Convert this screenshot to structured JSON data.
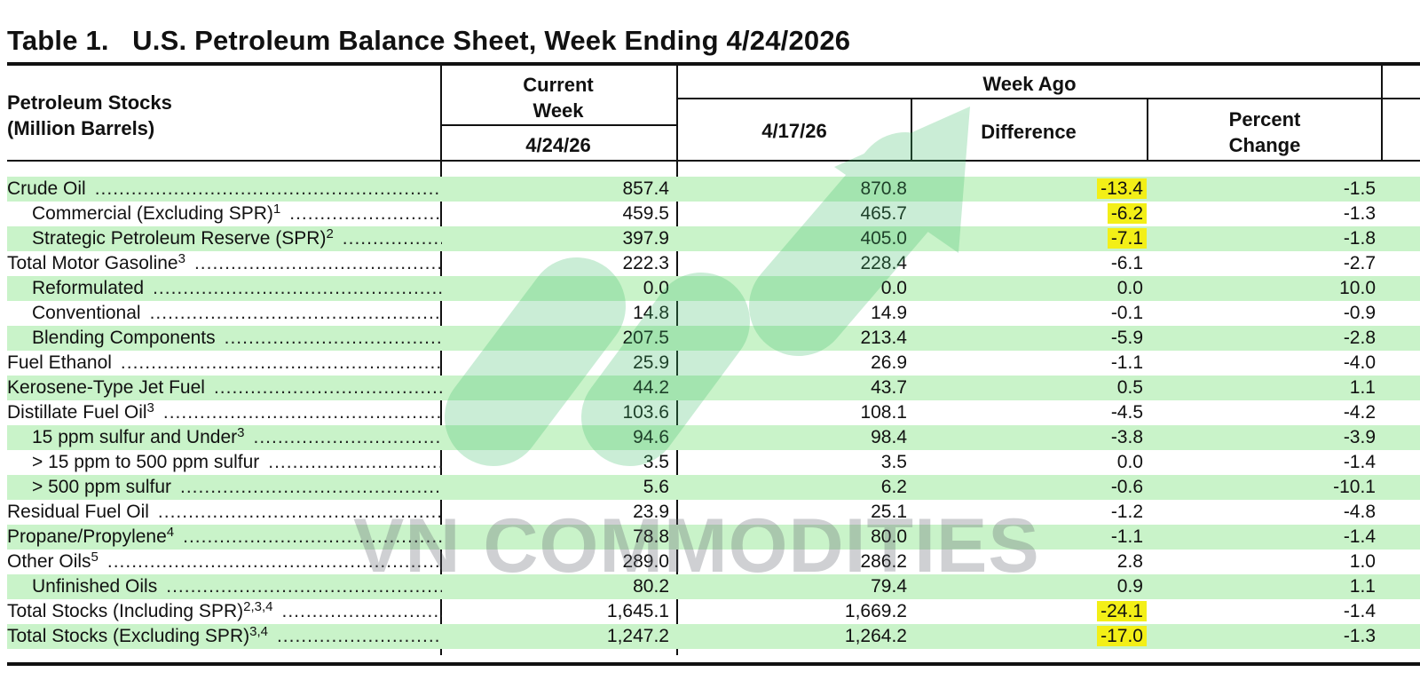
{
  "title": "Table 1.   U.S. Petroleum Balance Sheet, Week Ending 4/24/2026",
  "headers": {
    "stub_line1": "Petroleum Stocks",
    "stub_line2": "(Million Barrels)",
    "current_line1": "Current",
    "current_line2": "Week",
    "current_date": "4/24/26",
    "week_ago": "Week Ago",
    "week_ago_date": "4/17/26",
    "difference": "Difference",
    "percent_line1": "Percent",
    "percent_line2": "Change"
  },
  "rows": [
    {
      "label": "Crude Oil",
      "sup": "",
      "indent": false,
      "current": "857.4",
      "week_ago": "870.8",
      "difference": "-13.4",
      "percent": "-1.5",
      "highlight": true
    },
    {
      "label": "Commercial (Excluding SPR)",
      "sup": "1",
      "indent": true,
      "current": "459.5",
      "week_ago": "465.7",
      "difference": "-6.2",
      "percent": "-1.3",
      "highlight": true
    },
    {
      "label": "Strategic Petroleum Reserve (SPR)",
      "sup": "2",
      "indent": true,
      "current": "397.9",
      "week_ago": "405.0",
      "difference": "-7.1",
      "percent": "-1.8",
      "highlight": true
    },
    {
      "label": "Total Motor Gasoline",
      "sup": "3",
      "indent": false,
      "current": "222.3",
      "week_ago": "228.4",
      "difference": "-6.1",
      "percent": "-2.7",
      "highlight": false
    },
    {
      "label": "Reformulated",
      "sup": "",
      "indent": true,
      "current": "0.0",
      "week_ago": "0.0",
      "difference": "0.0",
      "percent": "10.0",
      "highlight": false
    },
    {
      "label": "Conventional",
      "sup": "",
      "indent": true,
      "current": "14.8",
      "week_ago": "14.9",
      "difference": "-0.1",
      "percent": "-0.9",
      "highlight": false
    },
    {
      "label": "Blending Components",
      "sup": "",
      "indent": true,
      "current": "207.5",
      "week_ago": "213.4",
      "difference": "-5.9",
      "percent": "-2.8",
      "highlight": false
    },
    {
      "label": "Fuel Ethanol",
      "sup": "",
      "indent": false,
      "current": "25.9",
      "week_ago": "26.9",
      "difference": "-1.1",
      "percent": "-4.0",
      "highlight": false
    },
    {
      "label": "Kerosene-Type Jet Fuel",
      "sup": "",
      "indent": false,
      "current": "44.2",
      "week_ago": "43.7",
      "difference": "0.5",
      "percent": "1.1",
      "highlight": false
    },
    {
      "label": "Distillate Fuel Oil",
      "sup": "3",
      "indent": false,
      "current": "103.6",
      "week_ago": "108.1",
      "difference": "-4.5",
      "percent": "-4.2",
      "highlight": false
    },
    {
      "label": "15 ppm sulfur and Under",
      "sup": "3",
      "indent": true,
      "current": "94.6",
      "week_ago": "98.4",
      "difference": "-3.8",
      "percent": "-3.9",
      "highlight": false
    },
    {
      "label": "> 15 ppm to 500 ppm sulfur",
      "sup": "",
      "indent": true,
      "current": "3.5",
      "week_ago": "3.5",
      "difference": "0.0",
      "percent": "-1.4",
      "highlight": false
    },
    {
      "label": "> 500 ppm sulfur",
      "sup": "",
      "indent": true,
      "current": "5.6",
      "week_ago": "6.2",
      "difference": "-0.6",
      "percent": "-10.1",
      "highlight": false
    },
    {
      "label": "Residual Fuel Oil",
      "sup": "",
      "indent": false,
      "current": "23.9",
      "week_ago": "25.1",
      "difference": "-1.2",
      "percent": "-4.8",
      "highlight": false
    },
    {
      "label": "Propane/Propylene",
      "sup": "4",
      "indent": false,
      "current": "78.8",
      "week_ago": "80.0",
      "difference": "-1.1",
      "percent": "-1.4",
      "highlight": false
    },
    {
      "label": "Other Oils",
      "sup": "5",
      "indent": false,
      "current": "289.0",
      "week_ago": "286.2",
      "difference": "2.8",
      "percent": "1.0",
      "highlight": false
    },
    {
      "label": "Unfinished Oils",
      "sup": "",
      "indent": true,
      "current": "80.2",
      "week_ago": "79.4",
      "difference": "0.9",
      "percent": "1.1",
      "highlight": false
    },
    {
      "label": "Total Stocks (Including SPR)",
      "sup": "2,3,4",
      "indent": false,
      "current": "1,645.1",
      "week_ago": "1,669.2",
      "difference": "-24.1",
      "percent": "-1.4",
      "highlight": true
    },
    {
      "label": "Total Stocks (Excluding SPR)",
      "sup": "3,4",
      "indent": false,
      "current": "1,247.2",
      "week_ago": "1,264.2",
      "difference": "-17.0",
      "percent": "-1.3",
      "highlight": true
    }
  ],
  "watermark": "VN COMMODITIES",
  "colors": {
    "row_shade": "#c9f3c9",
    "highlight": "#f3ef17",
    "watermark_green": "#3fbf6a"
  }
}
